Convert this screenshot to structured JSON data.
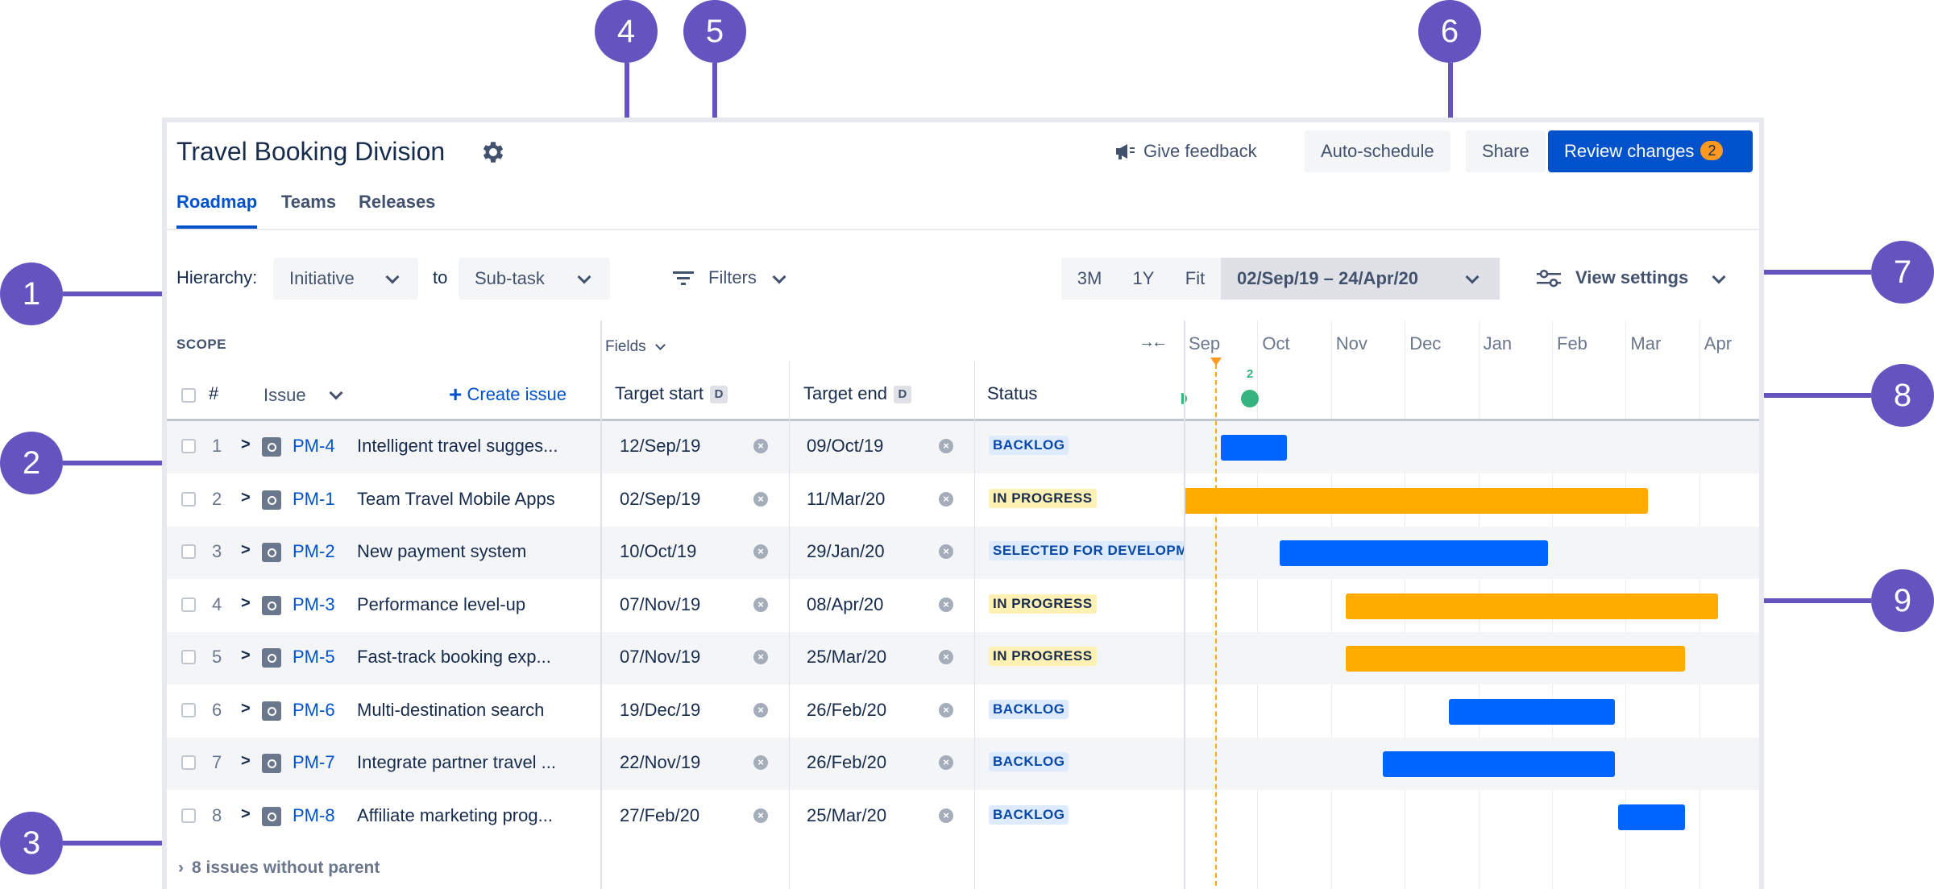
{
  "callouts": [
    "1",
    "2",
    "3",
    "4",
    "5",
    "6",
    "7",
    "8",
    "9"
  ],
  "header": {
    "title": "Travel Booking Division",
    "give_feedback": "Give feedback",
    "auto_schedule": "Auto-schedule",
    "share": "Share",
    "review_changes": "Review changes",
    "review_count": "2"
  },
  "tabs": [
    "Roadmap",
    "Teams",
    "Releases"
  ],
  "toolbar": {
    "hierarchy_label": "Hierarchy:",
    "from_value": "Initiative",
    "to_label": "to",
    "to_value": "Sub-task",
    "filters": "Filters",
    "zoom_3m": "3M",
    "zoom_1y": "1Y",
    "zoom_fit": "Fit",
    "date_range": "02/Sep/19 – 24/Apr/20",
    "view_settings": "View settings"
  },
  "table": {
    "scope_label": "SCOPE",
    "fields_label": "Fields",
    "hash": "#",
    "issue_label": "Issue",
    "create_issue": "Create issue",
    "target_start": "Target start",
    "target_end": "Target end",
    "date_badge": "D",
    "status": "Status",
    "collapse_icon": "→←",
    "marker_count": "2",
    "rows": [
      {
        "num": "1",
        "key": "PM-4",
        "summary": "Intelligent travel sugges...",
        "start": "12/Sep/19",
        "end": "09/Oct/19",
        "status": "BACKLOG",
        "kind": "backlog",
        "bar_start": 0.5,
        "bar_end": 1.4,
        "color": "#0065ff"
      },
      {
        "num": "2",
        "key": "PM-1",
        "summary": "Team Travel Mobile Apps",
        "start": "02/Sep/19",
        "end": "11/Mar/20",
        "status": "IN PROGRESS",
        "kind": "progress",
        "bar_start": 0.0,
        "bar_end": 6.3,
        "color": "#ffab00"
      },
      {
        "num": "3",
        "key": "PM-2",
        "summary": "New payment system",
        "start": "10/Oct/19",
        "end": "29/Jan/20",
        "status": "SELECTED FOR DEVELOPM",
        "kind": "backlog",
        "bar_start": 1.3,
        "bar_end": 4.95,
        "color": "#0065ff"
      },
      {
        "num": "4",
        "key": "PM-3",
        "summary": "Performance level-up",
        "start": "07/Nov/19",
        "end": "08/Apr/20",
        "status": "IN PROGRESS",
        "kind": "progress",
        "bar_start": 2.2,
        "bar_end": 7.25,
        "color": "#ffab00"
      },
      {
        "num": "5",
        "key": "PM-5",
        "summary": "Fast-track booking exp...",
        "start": "07/Nov/19",
        "end": "25/Mar/20",
        "status": "IN PROGRESS",
        "kind": "progress",
        "bar_start": 2.2,
        "bar_end": 6.8,
        "color": "#ffab00"
      },
      {
        "num": "6",
        "key": "PM-6",
        "summary": "Multi-destination search",
        "start": "19/Dec/19",
        "end": "26/Feb/20",
        "status": "BACKLOG",
        "kind": "backlog",
        "bar_start": 3.6,
        "bar_end": 5.85,
        "color": "#0065ff"
      },
      {
        "num": "7",
        "key": "PM-7",
        "summary": "Integrate partner travel ...",
        "start": "22/Nov/19",
        "end": "26/Feb/20",
        "status": "BACKLOG",
        "kind": "backlog",
        "bar_start": 2.7,
        "bar_end": 5.85,
        "color": "#0065ff"
      },
      {
        "num": "8",
        "key": "PM-8",
        "summary": "Affiliate marketing prog...",
        "start": "27/Feb/20",
        "end": "25/Mar/20",
        "status": "BACKLOG",
        "kind": "backlog",
        "bar_start": 5.9,
        "bar_end": 6.8,
        "color": "#0065ff"
      }
    ],
    "footer": "8 issues without parent"
  },
  "timeline": {
    "months": [
      "Sep",
      "Oct",
      "Nov",
      "Dec",
      "Jan",
      "Feb",
      "Mar",
      "Apr"
    ]
  }
}
